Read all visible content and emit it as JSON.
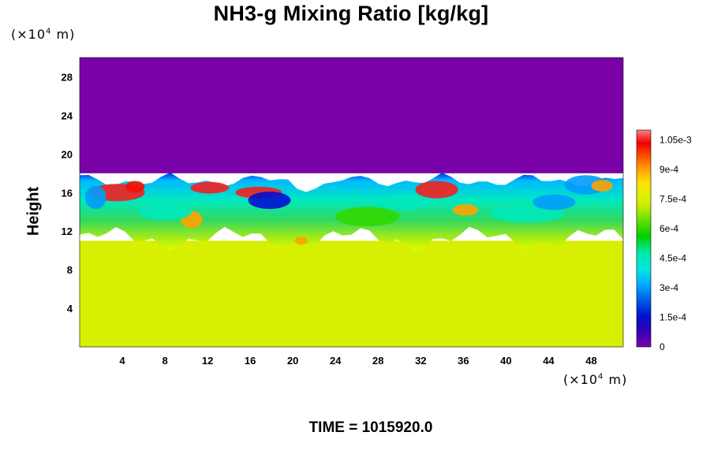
{
  "chart_data": {
    "type": "heatmap",
    "title": "NH3-g Mixing Ratio [kg/kg]",
    "xlabel": "",
    "ylabel": "Height",
    "x_unit": "(×10⁴ m)",
    "y_unit": "(×10⁴ m)",
    "x_range": [
      0,
      51
    ],
    "y_range": [
      0,
      30
    ],
    "x_ticks": [
      "4",
      "8",
      "12",
      "16",
      "20",
      "24",
      "28",
      "32",
      "36",
      "40",
      "44",
      "48"
    ],
    "y_ticks": [
      "4",
      "8",
      "12",
      "16",
      "20",
      "24",
      "28"
    ],
    "colorbar": {
      "range": [
        0,
        0.0011
      ],
      "tick_labels": [
        "1.05e-3",
        "9e-4",
        "7.5e-4",
        "6e-4",
        "4.5e-4",
        "3e-4",
        "1.5e-4",
        "0"
      ],
      "tick_values": [
        0.00105,
        0.0009,
        0.00075,
        0.0006,
        0.00045,
        0.0003,
        0.00015,
        0
      ]
    },
    "regions": [
      {
        "zone": "upper layer, height 18 to 30",
        "value": 0.0
      },
      {
        "zone": "lower layer, height 0 to 11",
        "value": 0.00075
      },
      {
        "zone": "mixed transition, height 11 to 18",
        "value_range": [
          0.00015,
          0.00105
        ]
      }
    ],
    "time_label": "TIME = 1015920.0"
  }
}
